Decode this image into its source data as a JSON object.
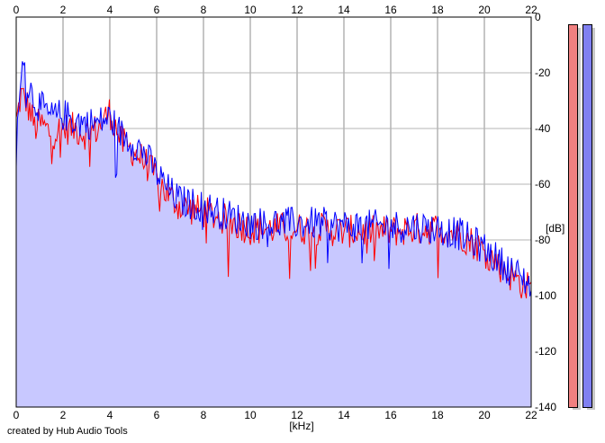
{
  "chart_data": {
    "type": "line",
    "xlabel": "[kHz]",
    "ylabel": "[dB]",
    "xlim": [
      0,
      22
    ],
    "ylim": [
      -140,
      0
    ],
    "x_ticks": [
      0,
      2,
      4,
      6,
      8,
      10,
      12,
      14,
      16,
      18,
      20,
      22
    ],
    "y_ticks": [
      0,
      -20,
      -40,
      -60,
      -80,
      -100,
      -120,
      -140
    ],
    "grid": true,
    "series": [
      {
        "color": "#ff0000",
        "x": [
          0,
          0.2,
          0.4,
          0.6,
          0.8,
          1.0,
          1.5,
          2.0,
          2.5,
          3.0,
          3.5,
          4.0,
          4.5,
          5.0,
          5.5,
          6.0,
          6.5,
          7.0,
          8.0,
          9.0,
          10.0,
          11.0,
          12.0,
          13.0,
          14.0,
          15.0,
          16.0,
          17.0,
          18.0,
          19.0,
          20.0,
          21.0,
          22.0
        ],
        "y": [
          -38,
          -28,
          -30,
          -34,
          -40,
          -38,
          -42,
          -40,
          -40,
          -42,
          -40,
          -34,
          -45,
          -48,
          -52,
          -58,
          -64,
          -68,
          -70,
          -73,
          -76,
          -76,
          -76,
          -76,
          -77,
          -77,
          -77,
          -76,
          -76,
          -78,
          -84,
          -92,
          -98
        ]
      },
      {
        "color": "#0000ff",
        "x": [
          0,
          0.2,
          0.4,
          0.6,
          0.8,
          1.0,
          1.5,
          2.0,
          2.5,
          3.0,
          3.5,
          4.0,
          4.5,
          5.0,
          5.5,
          6.0,
          6.5,
          7.0,
          8.0,
          9.0,
          10.0,
          11.0,
          12.0,
          13.0,
          14.0,
          15.0,
          16.0,
          17.0,
          18.0,
          19.0,
          20.0,
          21.0,
          22.0
        ],
        "y": [
          -48,
          -18,
          -22,
          -26,
          -30,
          -32,
          -36,
          -35,
          -37,
          -38,
          -38,
          -36,
          -42,
          -45,
          -49,
          -56,
          -62,
          -66,
          -68,
          -71,
          -74,
          -74,
          -74,
          -74,
          -75,
          -75,
          -75,
          -75,
          -76,
          -78,
          -83,
          -90,
          -96
        ]
      }
    ],
    "fill_color": "#c8c8ff"
  },
  "meters": {
    "left_color": "#f08080",
    "right_color": "#8080f0"
  },
  "footer": {
    "credit": "created by Hub Audio Tools"
  }
}
